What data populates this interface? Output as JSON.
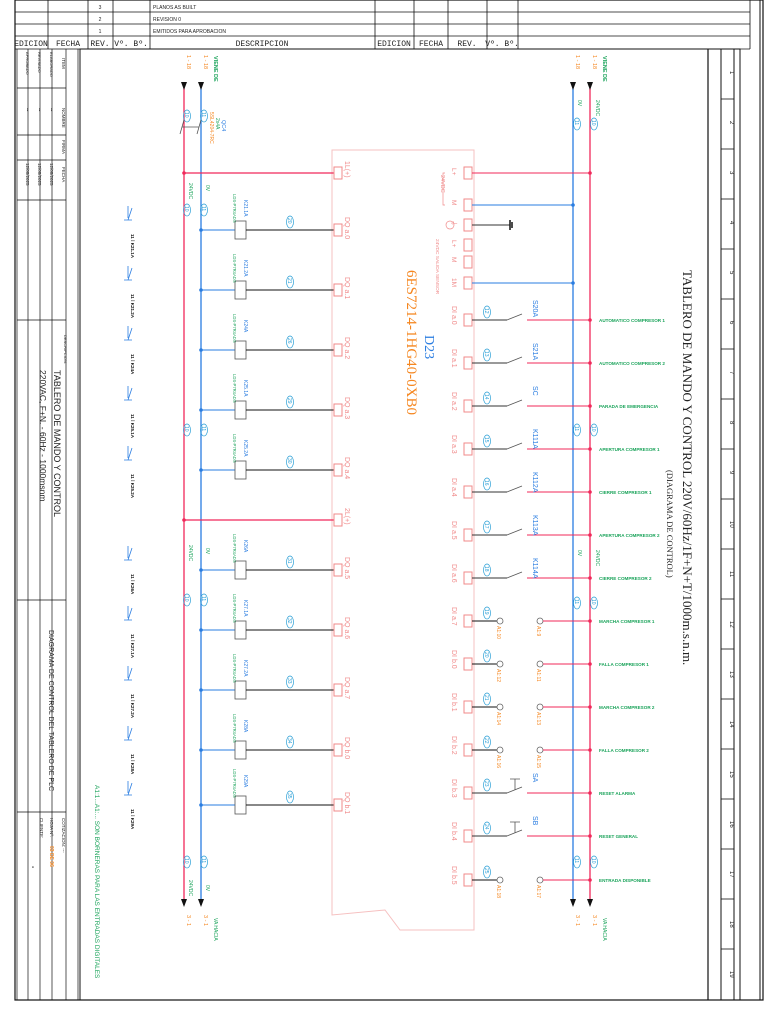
{
  "colors": {
    "red": "#f0285a",
    "blue": "#2a7de1",
    "green": "#1aa35a",
    "orange": "#f5861f",
    "pink": "#f08a8a",
    "cyan": "#2a9fd6",
    "black": "#222222"
  },
  "revisions": [
    {
      "rev": "3",
      "desc": "PLANOS AS BUILT"
    },
    {
      "rev": "2",
      "desc": "REVISION 0"
    },
    {
      "rev": "1",
      "desc": "EMITIDOS PARA APROBACION"
    }
  ],
  "header": {
    "edicion": "EDICION",
    "fecha": "FECHA",
    "rev": "REV.",
    "vb": "Vº. Bº.",
    "descripcion": "DESCRIPCION"
  },
  "title_block": {
    "items_label": "ITEM",
    "nombre_label": "NOMBRE",
    "firma_label": "FIRMA",
    "fecha_label": "FECHA",
    "rows": [
      {
        "item": "ELABORADO",
        "nombre": "--",
        "fecha": "12/08/2025"
      },
      {
        "item": "REVISADO",
        "nombre": "--",
        "fecha": "12/08/2025"
      },
      {
        "item": "APROBADO",
        "nombre": "--",
        "fecha": "12/08/2025"
      }
    ],
    "descripcion_label": "DESCRIPCION:",
    "project_line1": "TABLERO DE MANDO Y CONTROL",
    "project_line2": "220VAC, F+N. - 60Hz - 1000msnm",
    "drawing_title": "DIAGRAMA DE CONTROL DEL TABLERO DE PLC",
    "cotizacion": "COTIZACION: ---",
    "hoja": "HOJA Nº:",
    "hoja_num": "03 DE 06",
    "cliente_label": "CLIENTE:",
    "cliente": "-"
  },
  "sheet_columns": [
    "1",
    "2",
    "3",
    "4",
    "5",
    "6",
    "7",
    "8",
    "9",
    "10",
    "11",
    "12",
    "13",
    "14",
    "15",
    "16",
    "17",
    "18",
    "19"
  ],
  "main_title": "TABLERO DE MANDO Y CONTROL 220V/60Hz/1F+N+T/1000m.s.n.m.",
  "main_subtitle": "(DIAGRAMA DE CONTROL)",
  "plc": {
    "tag": "D23",
    "model": "6ES7214-1HG40-0XB0"
  },
  "left_bus": {
    "from_ref": "1 - 18",
    "from_label": "VIENE DE",
    "to_ref": "3 - 1",
    "to_label": "VA HACIA",
    "v24": "24VDC",
    "v0": "0V",
    "w10": "10",
    "w11": "11",
    "breaker": {
      "tag": "QC4",
      "rating": "2x4A",
      "model": "5SL4204-7RC"
    }
  },
  "right_bus": {
    "from_ref": "1 - 18",
    "from_label": "VIENE DE",
    "to_ref": "3 - 1",
    "to_label": "VA HACIA",
    "v24": "24VDC",
    "v0": "0V",
    "w10": "10",
    "w11": "11"
  },
  "power_terminals": [
    {
      "label": "1L(+)"
    },
    {
      "label": "2L(+)"
    }
  ],
  "right_power_terminals": [
    {
      "label": "L+"
    },
    {
      "label": "M"
    },
    {
      "label": "⏚"
    },
    {
      "label": "L+"
    },
    {
      "label": "M"
    },
    {
      "label": "1M"
    }
  ],
  "supply_labels": {
    "v24": "24VDC",
    "sensor": "24VDC SALIDA SENSOR"
  },
  "outputs": [
    {
      "terminal": "DQ a.0",
      "wire": "20",
      "relay": "K21.1A",
      "model": "LDS-P7R4ADS",
      "contact": "11 ⁞ K21.1A"
    },
    {
      "terminal": "DQ a.1",
      "wire": "21",
      "relay": "K21.2A",
      "model": "LDS-P7R4ADS",
      "contact": "11 ⁞ K21.2A"
    },
    {
      "terminal": "DQ a.2",
      "wire": "26",
      "relay": "K24A",
      "model": "LDS-P7R4ADS",
      "contact": "11 ⁞ K24A"
    },
    {
      "terminal": "DQ a.3",
      "wire": "29",
      "relay": "K25.1A",
      "model": "LDS-P7R4ADS",
      "contact": "11 ⁞ K25.1A"
    },
    {
      "terminal": "DQ a.4",
      "wire": "30",
      "relay": "K25.2A",
      "model": "LDS-P7R4ADS",
      "contact": "11 ⁞ K25.2A"
    },
    {
      "terminal": "DQ a.5",
      "wire": "31",
      "relay": "K26A",
      "model": "LDS-P7R4ADS",
      "contact": "11 ⁞ K26A"
    },
    {
      "terminal": "DQ a.6",
      "wire": "32",
      "relay": "K27.1A",
      "model": "LDS-P7R4ADS",
      "contact": "11 ⁞ K27.1A"
    },
    {
      "terminal": "DQ a.7",
      "wire": "33",
      "relay": "K27.2A",
      "model": "LDS-P7R4ADS",
      "contact": "11 ⁞ K27.2A"
    },
    {
      "terminal": "DQ b.0",
      "wire": "34",
      "relay": "K28A",
      "model": "LDS-P7R4ADS",
      "contact": "11 ⁞ K28A"
    },
    {
      "terminal": "DQ b.1",
      "wire": "35",
      "relay": "K29A",
      "model": "LDS-P7R4ADS",
      "contact": "11 ⁞ K29A"
    }
  ],
  "inputs": [
    {
      "terminal": "DI a.0",
      "wire": "12",
      "type": "switch",
      "device": "S20A",
      "label": "AUTOMATICO COMPRESOR 1"
    },
    {
      "terminal": "DI a.1",
      "wire": "13",
      "type": "switch",
      "device": "S21A",
      "label": "AUTOMATICO COMPRESOR 2"
    },
    {
      "terminal": "DI a.2",
      "wire": "14",
      "type": "switch",
      "device": "SC",
      "label": "PARADA DE EMERGENCIA"
    },
    {
      "terminal": "DI a.3",
      "wire": "15",
      "type": "switch",
      "device": "K111A",
      "label": "APERTURA COMPRESOR 1"
    },
    {
      "terminal": "DI a.4",
      "wire": "16",
      "type": "switch",
      "device": "K112A",
      "label": "CIERRE COMPRESOR 1"
    },
    {
      "terminal": "DI a.5",
      "wire": "17",
      "type": "switch",
      "device": "K113A",
      "label": "APERTURA COMPRESOR 2"
    },
    {
      "terminal": "DI a.6",
      "wire": "18",
      "type": "switch",
      "device": "K114A",
      "label": "CIERRE COMPRESOR 2"
    },
    {
      "terminal": "DI a.7",
      "wire": "19",
      "type": "bornera",
      "b1": "A1:10",
      "b2": "A1:9",
      "label": "MARCHA COMPRESOR 1"
    },
    {
      "terminal": "DI b.0",
      "wire": "20",
      "type": "bornera",
      "b1": "A1:12",
      "b2": "A1:11",
      "label": "FALLA COMPRESOR 1"
    },
    {
      "terminal": "DI b.1",
      "wire": "21",
      "type": "bornera",
      "b1": "A1:14",
      "b2": "A1:13",
      "label": "MARCHA COMPRESOR 2"
    },
    {
      "terminal": "DI b.2",
      "wire": "22",
      "type": "bornera",
      "b1": "A1:16",
      "b2": "A1:15",
      "label": "FALLA COMPRESOR 2"
    },
    {
      "terminal": "DI b.3",
      "wire": "23",
      "type": "pushbutton",
      "device": "SA",
      "label": "RESET ALARMA"
    },
    {
      "terminal": "DI b.4",
      "wire": "24",
      "type": "pushbutton",
      "device": "SB",
      "label": "RESET GENERAL"
    },
    {
      "terminal": "DI b.5",
      "wire": "25",
      "type": "bornera",
      "b1": "A1:18",
      "b2": "A1:17",
      "label": "ENTRADA DISPONIBLE"
    }
  ],
  "note": "A1:1...A1:... SON BORNERAS PARA LAS ENTRADAS DIGITALES"
}
